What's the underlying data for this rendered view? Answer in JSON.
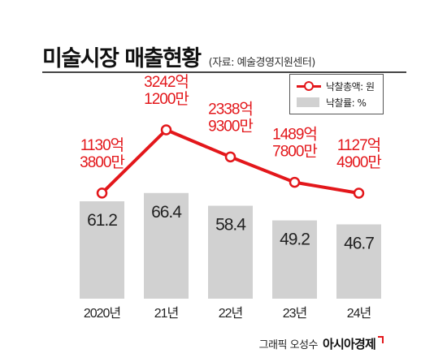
{
  "header": {
    "title": "미술시장 매출현황",
    "source": "(자료: 예술경영지원센터)"
  },
  "legend": {
    "line_label": "낙찰총액: 원",
    "bar_label": "낙찰률: %"
  },
  "chart_data": {
    "type": "bar",
    "categories": [
      "2020년",
      "21년",
      "22년",
      "23년",
      "24년"
    ],
    "series": [
      {
        "name": "낙찰률: %",
        "type": "bar",
        "values": [
          61.2,
          66.4,
          58.4,
          49.2,
          46.7
        ],
        "color": "#d1d1d1"
      },
      {
        "name": "낙찰총액: 원",
        "type": "line",
        "values": [
          1130.38,
          3242.12,
          2338.93,
          1489.78,
          1127.49
        ],
        "unit": "억",
        "labels": [
          [
            "1130억",
            "3800만"
          ],
          [
            "3242억",
            "1200만"
          ],
          [
            "2338억",
            "9300만"
          ],
          [
            "1489억",
            "7800만"
          ],
          [
            "1127억",
            "4900만"
          ]
        ],
        "color": "#e3171b"
      }
    ]
  },
  "footer": {
    "credit": "그래픽 오성수",
    "brand": "아시아경제"
  },
  "colors": {
    "accent": "#e3171b",
    "bar": "#d1d1d1"
  }
}
